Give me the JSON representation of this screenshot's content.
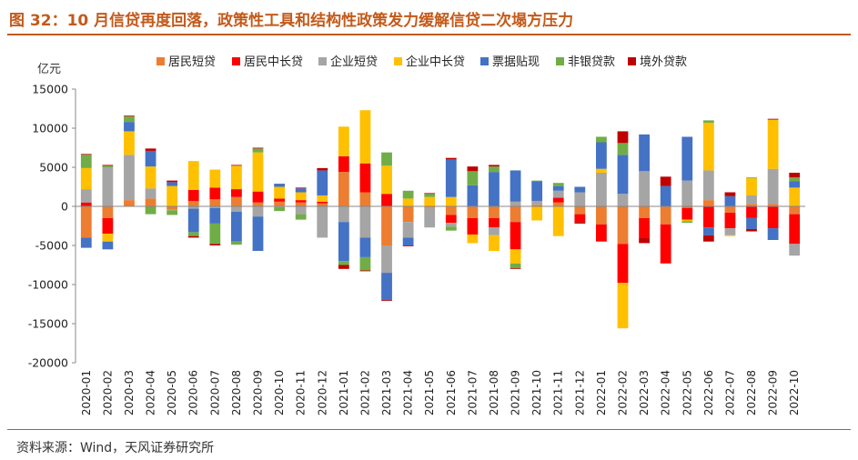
{
  "figure": {
    "title": "图 32：10 月信贷再度回落，政策性工具和结构性政策发力缓解信贷二次塌方压力",
    "source": "资料来源：Wind，天风证券研究所"
  },
  "chart_data": {
    "type": "bar",
    "stacked": true,
    "ylabel": "亿元",
    "ylim": [
      -20000,
      15000
    ],
    "yticks": [
      15000,
      10000,
      5000,
      0,
      -5000,
      -10000,
      -15000,
      -20000
    ],
    "grid": false,
    "legend_position": "top",
    "categories": [
      "2020-01",
      "2020-02",
      "2020-03",
      "2020-04",
      "2020-05",
      "2020-06",
      "2020-07",
      "2020-08",
      "2020-09",
      "2020-10",
      "2020-11",
      "2020-12",
      "2021-01",
      "2021-02",
      "2021-03",
      "2021-04",
      "2021-05",
      "2021-06",
      "2021-07",
      "2021-08",
      "2021-09",
      "2021-10",
      "2021-11",
      "2021-12",
      "2022-01",
      "2022-02",
      "2022-03",
      "2022-04",
      "2022-05",
      "2022-06",
      "2022-07",
      "2022-08",
      "2022-09",
      "2022-10"
    ],
    "series": [
      {
        "name": "居民短贷",
        "color": "#ed7d31",
        "values": [
          -4000,
          -1500,
          800,
          1000,
          -400,
          700,
          900,
          1200,
          500,
          600,
          500,
          400,
          4400,
          1800,
          -5000,
          -2000,
          -200,
          -1100,
          -1500,
          -1500,
          -2000,
          200,
          500,
          -1000,
          -2300,
          -4800,
          -1500,
          -2300,
          -200,
          800,
          -800,
          300,
          300,
          -1000
        ]
      },
      {
        "name": "居民中长贷",
        "color": "#ff0000",
        "values": [
          500,
          -2000,
          0,
          0,
          0,
          1400,
          1500,
          1000,
          1400,
          400,
          300,
          200,
          2000,
          3700,
          1600,
          0,
          0,
          -1000,
          -2100,
          -1200,
          -3500,
          0,
          600,
          -1000,
          -2200,
          -5000,
          -2500,
          -5000,
          -1500,
          -2700,
          -2000,
          -1500,
          -2800,
          -3800
        ]
      },
      {
        "name": "企业短贷",
        "color": "#a5a5a5",
        "values": [
          1700,
          5000,
          5800,
          1300,
          -100,
          -300,
          -200,
          -700,
          -1300,
          -100,
          -1000,
          -4000,
          -2000,
          -4000,
          -3500,
          -2000,
          -2500,
          -500,
          0,
          -1000,
          600,
          500,
          900,
          1800,
          4300,
          1600,
          4500,
          0,
          3300,
          3800,
          -900,
          1100,
          4500,
          -1500
        ]
      },
      {
        "name": "企业中长贷",
        "color": "#ffc000",
        "values": [
          2700,
          -1000,
          3000,
          2800,
          2600,
          3700,
          2300,
          3000,
          5000,
          1500,
          1000,
          800,
          3800,
          6800,
          3600,
          1000,
          1200,
          1200,
          -1100,
          -2000,
          -1800,
          -1800,
          -3800,
          0,
          500,
          -5800,
          0,
          0,
          -200,
          6100,
          -100,
          2200,
          6300,
          2400
        ]
      },
      {
        "name": "票据贴现",
        "color": "#4472c4",
        "values": [
          -1300,
          -1000,
          1200,
          2000,
          500,
          -3000,
          -2000,
          -3800,
          -4400,
          400,
          500,
          3200,
          -5000,
          -2500,
          -3500,
          -1000,
          0,
          4800,
          2700,
          4400,
          4000,
          2500,
          600,
          700,
          3400,
          5000,
          4700,
          2600,
          5600,
          -1000,
          1300,
          -1400,
          -1500,
          800
        ]
      },
      {
        "name": "非银贷款",
        "color": "#70ad47",
        "values": [
          1700,
          200,
          700,
          -1000,
          -600,
          -500,
          -2600,
          -400,
          500,
          -500,
          -700,
          0,
          -500,
          -1700,
          1700,
          1000,
          400,
          -500,
          1800,
          700,
          -600,
          100,
          400,
          0,
          700,
          1500,
          0,
          0,
          -200,
          300,
          0,
          100,
          0,
          500
        ]
      },
      {
        "name": "境外贷款",
        "color": "#c00000",
        "values": [
          100,
          100,
          100,
          300,
          200,
          -200,
          -200,
          100,
          100,
          0,
          100,
          300,
          -500,
          -100,
          -100,
          -100,
          100,
          200,
          600,
          200,
          -100,
          0,
          0,
          -200,
          0,
          1500,
          -700,
          1200,
          0,
          -800,
          500,
          -300,
          100,
          600
        ]
      }
    ]
  }
}
